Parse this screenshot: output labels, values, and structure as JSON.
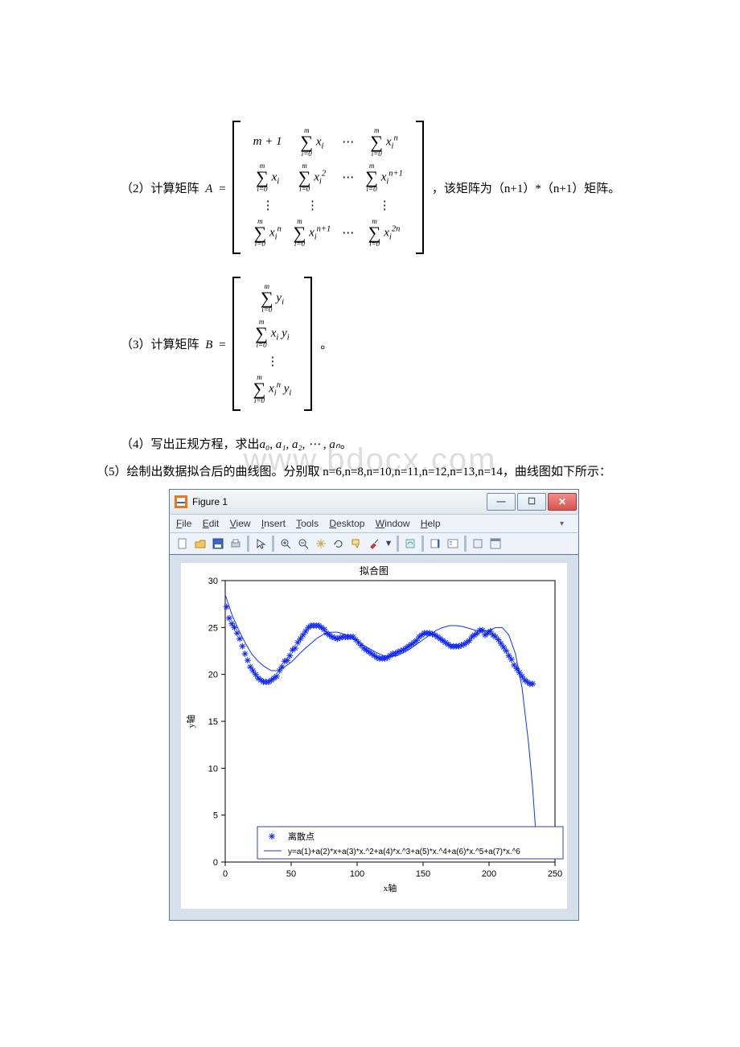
{
  "watermark": "www.bdocx.com",
  "eq2": {
    "label": "（2）计算矩阵",
    "var": "A",
    "after": "，该矩阵为（n+1）*（n+1）矩阵。"
  },
  "eq3": {
    "label": "（3）计算矩阵",
    "var": "B",
    "after": "。"
  },
  "para4_prefix": "（4）写出正规方程，求出",
  "para4_vars": "a₀, a₁, a₂, ⋯ , aₙ",
  "para4_suffix": "。",
  "para5": "（5）绘制出数据拟合后的曲线图。分别取 n=6,n=8,n=10,n=11,n=12,n=13,n=14，曲线图如下所示：",
  "figure": {
    "window_title": "Figure 1",
    "menus": [
      "File",
      "Edit",
      "View",
      "Insert",
      "Tools",
      "Desktop",
      "Window",
      "Help"
    ],
    "chart": {
      "type": "line+scatter",
      "title": "拟合图",
      "title_fontsize": 12,
      "xlabel": "x轴",
      "ylabel": "y轴",
      "label_fontsize": 11,
      "background_color": "#ffffff",
      "axis_color": "#000000",
      "xlim": [
        0,
        250
      ],
      "ylim": [
        0,
        30
      ],
      "xticks": [
        0,
        50,
        100,
        150,
        200,
        250
      ],
      "yticks": [
        0,
        5,
        10,
        15,
        20,
        25,
        30
      ],
      "scatter": {
        "marker": "*",
        "color": "#0b24fb",
        "size": 4,
        "x": [
          1,
          3,
          5,
          7,
          9,
          11,
          13,
          15,
          17,
          19,
          21,
          23,
          25,
          27,
          29,
          31,
          33,
          35,
          37,
          39,
          41,
          43,
          45,
          47,
          49,
          51,
          53,
          55,
          57,
          59,
          61,
          63,
          65,
          67,
          69,
          71,
          73,
          75,
          77,
          79,
          81,
          83,
          85,
          87,
          89,
          91,
          93,
          95,
          97,
          99,
          101,
          103,
          105,
          107,
          109,
          111,
          113,
          115,
          117,
          119,
          121,
          123,
          125,
          127,
          129,
          131,
          133,
          135,
          137,
          139,
          141,
          143,
          145,
          147,
          149,
          151,
          153,
          155,
          157,
          159,
          161,
          163,
          165,
          167,
          169,
          171,
          173,
          175,
          177,
          179,
          181,
          183,
          185,
          187,
          189,
          191,
          193,
          195,
          197,
          199,
          201,
          203,
          205,
          207,
          209,
          211,
          213,
          215,
          217,
          219,
          221,
          223,
          225,
          227,
          229,
          231,
          233
        ],
        "y": [
          27.2,
          26.0,
          25.4,
          25.0,
          24.4,
          23.8,
          23.0,
          22.2,
          21.5,
          20.8,
          20.4,
          20.0,
          19.6,
          19.4,
          19.2,
          19.2,
          19.2,
          19.4,
          19.6,
          19.8,
          20.4,
          20.8,
          21.4,
          21.5,
          22.0,
          22.6,
          22.8,
          23.4,
          23.8,
          24.2,
          24.6,
          25.0,
          25.2,
          25.2,
          25.2,
          25.2,
          25.0,
          24.8,
          24.4,
          24.2,
          24.0,
          23.9,
          23.8,
          23.9,
          24.0,
          24.0,
          24.0,
          24.0,
          24.0,
          23.7,
          23.4,
          23.1,
          22.8,
          22.6,
          22.4,
          22.2,
          22.0,
          21.8,
          21.7,
          21.7,
          21.7,
          21.8,
          22.0,
          22.2,
          22.2,
          22.4,
          22.5,
          22.6,
          22.8,
          23.0,
          23.2,
          23.4,
          23.6,
          24.0,
          24.2,
          24.4,
          24.4,
          24.4,
          24.3,
          24.2,
          24.0,
          23.8,
          23.6,
          23.4,
          23.2,
          23.0,
          23.0,
          23.0,
          23.0,
          23.1,
          23.2,
          23.4,
          23.6,
          24.0,
          24.2,
          24.4,
          24.7,
          24.7,
          24.2,
          24.4,
          24.6,
          24.2,
          24.0,
          23.7,
          23.3,
          22.9,
          22.5,
          22.0,
          21.6,
          21.0,
          20.6,
          20.2,
          19.8,
          19.4,
          19.2,
          19.0,
          19.0
        ]
      },
      "line": {
        "color": "#1030ff",
        "width": 1,
        "x": [
          0,
          5,
          10,
          15,
          20,
          25,
          30,
          35,
          40,
          45,
          50,
          55,
          60,
          65,
          70,
          75,
          80,
          85,
          90,
          95,
          100,
          105,
          110,
          115,
          120,
          125,
          130,
          135,
          140,
          145,
          150,
          155,
          160,
          165,
          170,
          175,
          180,
          185,
          190,
          195,
          200,
          205,
          210,
          215,
          220,
          225,
          230,
          233,
          235,
          236,
          237,
          238
        ],
        "y": [
          28.5,
          26.4,
          24.8,
          23.4,
          22.2,
          21.4,
          20.8,
          20.4,
          20.4,
          20.8,
          21.3,
          22.0,
          22.7,
          23.3,
          23.9,
          24.3,
          24.5,
          24.5,
          24.3,
          24.0,
          23.6,
          23.1,
          22.7,
          22.3,
          22.0,
          21.9,
          22.0,
          22.3,
          22.7,
          23.2,
          23.7,
          24.2,
          24.7,
          25.0,
          25.2,
          25.2,
          25.1,
          24.9,
          24.7,
          24.6,
          24.7,
          25.0,
          25.0,
          24.2,
          22.2,
          18.6,
          12.6,
          8.0,
          4.0,
          2.0,
          1.0,
          0.4
        ]
      },
      "legend": {
        "position": "bottom-center",
        "border_color": "#2d43b3",
        "items": [
          {
            "marker": "*",
            "color": "#0b24fb",
            "label": "离散点"
          },
          {
            "marker": "line",
            "color": "#1030ff",
            "label": "y=a(1)+a(2)*x+a(3)*x.^2+a(4)*x.^3+a(5)*x.^4+a(6)*x.^5+a(7)*x.^6"
          }
        ]
      }
    }
  }
}
